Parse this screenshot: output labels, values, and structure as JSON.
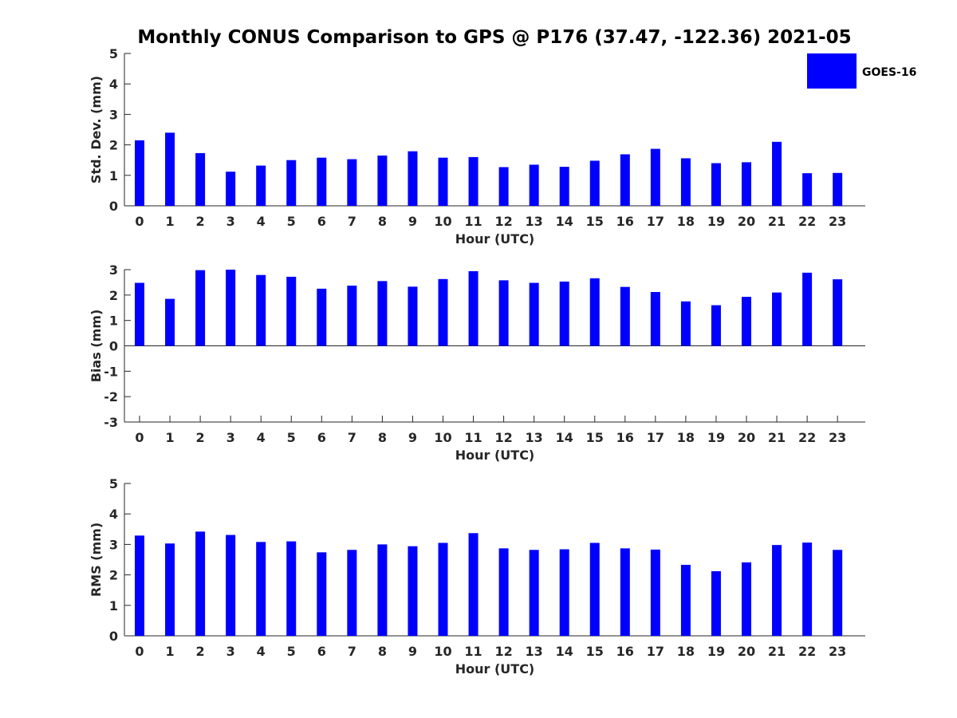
{
  "title": "Monthly CONUS Comparison to GPS @ P176 (37.47, -122.36) 2021-05",
  "legend": {
    "label": "GOES-16",
    "color": "#0000ff"
  },
  "chart_data": [
    {
      "type": "bar",
      "xlabel": "Hour (UTC)",
      "ylabel": "Std. Dev. (mm)",
      "ylim": [
        0,
        5
      ],
      "yticks": [
        0,
        1,
        2,
        3,
        4,
        5
      ],
      "categories": [
        "0",
        "1",
        "2",
        "3",
        "4",
        "5",
        "6",
        "7",
        "8",
        "9",
        "10",
        "11",
        "12",
        "13",
        "14",
        "15",
        "16",
        "17",
        "18",
        "19",
        "20",
        "21",
        "22",
        "23"
      ],
      "series": [
        {
          "name": "GOES-16",
          "color": "#0000ff",
          "values": [
            2.15,
            2.4,
            1.73,
            1.12,
            1.32,
            1.5,
            1.58,
            1.53,
            1.65,
            1.79,
            1.58,
            1.6,
            1.27,
            1.35,
            1.28,
            1.48,
            1.69,
            1.87,
            1.56,
            1.4,
            1.43,
            2.1,
            1.07,
            1.08
          ]
        }
      ]
    },
    {
      "type": "bar",
      "xlabel": "Hour (UTC)",
      "ylabel": "Bias (mm)",
      "ylim": [
        -3,
        3
      ],
      "yticks": [
        -3,
        -2,
        -1,
        0,
        1,
        2,
        3
      ],
      "categories": [
        "0",
        "1",
        "2",
        "3",
        "4",
        "5",
        "6",
        "7",
        "8",
        "9",
        "10",
        "11",
        "12",
        "13",
        "14",
        "15",
        "16",
        "17",
        "18",
        "19",
        "20",
        "21",
        "22",
        "23"
      ],
      "series": [
        {
          "name": "GOES-16",
          "color": "#0000ff",
          "values": [
            2.48,
            1.85,
            2.98,
            3.0,
            2.79,
            2.72,
            2.25,
            2.37,
            2.55,
            2.33,
            2.63,
            2.94,
            2.58,
            2.48,
            2.53,
            2.66,
            2.32,
            2.12,
            1.75,
            1.6,
            1.93,
            2.1,
            2.88,
            2.62
          ]
        }
      ]
    },
    {
      "type": "bar",
      "xlabel": "Hour (UTC)",
      "ylabel": "RMS (mm)",
      "ylim": [
        0,
        5
      ],
      "yticks": [
        0,
        1,
        2,
        3,
        4,
        5
      ],
      "categories": [
        "0",
        "1",
        "2",
        "3",
        "4",
        "5",
        "6",
        "7",
        "8",
        "9",
        "10",
        "11",
        "12",
        "13",
        "14",
        "15",
        "16",
        "17",
        "18",
        "19",
        "20",
        "21",
        "22",
        "23"
      ],
      "series": [
        {
          "name": "GOES-16",
          "color": "#0000ff",
          "values": [
            3.29,
            3.03,
            3.42,
            3.31,
            3.08,
            3.1,
            2.74,
            2.82,
            3.0,
            2.94,
            3.05,
            3.37,
            2.87,
            2.82,
            2.84,
            3.05,
            2.87,
            2.83,
            2.33,
            2.12,
            2.41,
            2.98,
            3.06,
            2.82
          ]
        }
      ]
    }
  ]
}
